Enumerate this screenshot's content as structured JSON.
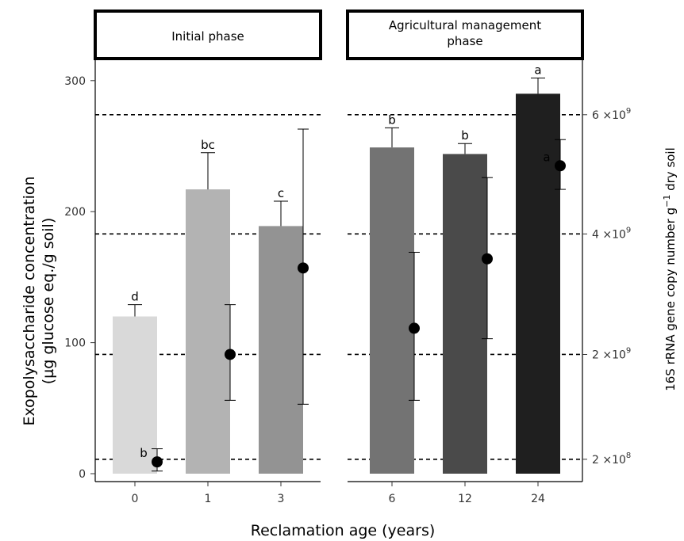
{
  "chart_data": {
    "type": "bar",
    "facets": [
      {
        "title_lines": [
          "Initial phase"
        ],
        "categories": [
          "0",
          "1",
          "3"
        ]
      },
      {
        "title_lines": [
          "Agricultural management",
          "phase"
        ],
        "categories": [
          "6",
          "12",
          "24"
        ]
      }
    ],
    "xlabel": "Reclamation age (years)",
    "ylabel_lines": [
      "Exopolysaccharide concentration",
      "(µg glucose eq./g soil)"
    ],
    "ylabel_right_parts": [
      "16S rRNA gene copy number g",
      "−1",
      " dry soil"
    ],
    "ylim": [
      0,
      330
    ],
    "yticks": [
      0,
      100,
      200,
      300
    ],
    "right_axis": {
      "ticks": [
        {
          "mantissa": "2",
          "exponent": "8",
          "left_axis_value": 11
        },
        {
          "mantissa": "2",
          "exponent": "9",
          "left_axis_value": 91
        },
        {
          "mantissa": "4",
          "exponent": "9",
          "left_axis_value": 183
        },
        {
          "mantissa": "6",
          "exponent": "9",
          "left_axis_value": 274
        }
      ],
      "multiply_sign": "×",
      "base": "10"
    },
    "bars": {
      "name": "Exopolysaccharide concentration",
      "values": [
        120,
        217,
        189,
        249,
        244,
        290
      ],
      "error_upper": [
        129,
        245,
        208,
        264,
        252,
        302
      ],
      "colors": [
        "#d9d9d9",
        "#b3b3b3",
        "#939393",
        "#737373",
        "#4a4a4a",
        "#1f1f1f"
      ],
      "labels": [
        "d",
        "bc",
        "c",
        "b",
        "b",
        "a"
      ]
    },
    "points": {
      "name": "16S rRNA gene copy number",
      "values": [
        9,
        91,
        157,
        111,
        164,
        235
      ],
      "error_lower": [
        2,
        56,
        53,
        56,
        103,
        217
      ],
      "error_upper": [
        19,
        129,
        263,
        169,
        226,
        255
      ],
      "labels": [
        "b",
        "",
        "",
        "",
        "",
        "a"
      ]
    }
  }
}
